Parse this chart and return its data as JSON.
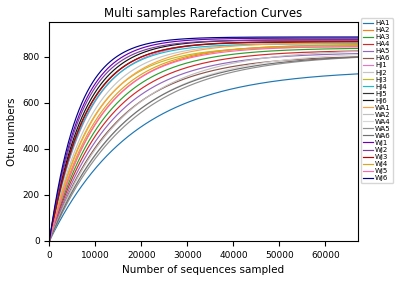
{
  "title": "Multi samples Rarefaction Curves",
  "xlabel": "Number of sequences sampled",
  "ylabel": "Otu numbers",
  "xlim": [
    0,
    67000
  ],
  "ylim": [
    0,
    950
  ],
  "xticks": [
    0,
    10000,
    20000,
    30000,
    40000,
    50000,
    60000
  ],
  "yticks": [
    0,
    200,
    400,
    600,
    800
  ],
  "samples": [
    {
      "label": "HA1",
      "color": "#1f77b4",
      "S_max": 745,
      "k": 5.5e-05
    },
    {
      "label": "HA2",
      "color": "#ff7f0e",
      "S_max": 855,
      "k": 9e-05
    },
    {
      "label": "HA3",
      "color": "#2ca02c",
      "S_max": 840,
      "k": 8.5e-05
    },
    {
      "label": "HA4",
      "color": "#d62728",
      "S_max": 830,
      "k": 8e-05
    },
    {
      "label": "HA5",
      "color": "#9467bd",
      "S_max": 820,
      "k": 7.5e-05
    },
    {
      "label": "HA6",
      "color": "#8c564b",
      "S_max": 808,
      "k": 7e-05
    },
    {
      "label": "HJ1",
      "color": "#e377c2",
      "S_max": 870,
      "k": 0.00012
    },
    {
      "label": "HJ2",
      "color": "#c5c5c5",
      "S_max": 860,
      "k": 0.00011
    },
    {
      "label": "HJ3",
      "color": "#bcbd22",
      "S_max": 845,
      "k": 0.000105
    },
    {
      "label": "HJ4",
      "color": "#17becf",
      "S_max": 858,
      "k": 0.000125
    },
    {
      "label": "HJ5",
      "color": "#333333",
      "S_max": 865,
      "k": 0.00013
    },
    {
      "label": "HJ6",
      "color": "#111111",
      "S_max": 875,
      "k": 0.000135
    },
    {
      "label": "WA1",
      "color": "#FFA040",
      "S_max": 863,
      "k": 0.0001
    },
    {
      "label": "WA2",
      "color": "#c0c0c0",
      "S_max": 835,
      "k": 6.5e-05
    },
    {
      "label": "WA4",
      "color": "#d8d8d8",
      "S_max": 825,
      "k": 6e-05
    },
    {
      "label": "WA5",
      "color": "#909090",
      "S_max": 815,
      "k": 5.8e-05
    },
    {
      "label": "WA6",
      "color": "#707070",
      "S_max": 812,
      "k": 6.2e-05
    },
    {
      "label": "WJ1",
      "color": "#6B00B6",
      "S_max": 882,
      "k": 0.00015
    },
    {
      "label": "WJ2",
      "color": "#7B3F9E",
      "S_max": 874,
      "k": 0.000145
    },
    {
      "label": "WJ3",
      "color": "#C00000",
      "S_max": 867,
      "k": 0.000128
    },
    {
      "label": "WJ4",
      "color": "#DAA520",
      "S_max": 852,
      "k": 9.5e-05
    },
    {
      "label": "WJ5",
      "color": "#FF69B4",
      "S_max": 847,
      "k": 9.2e-05
    },
    {
      "label": "WJ6",
      "color": "#00008B",
      "S_max": 887,
      "k": 0.00016
    }
  ],
  "figsize": [
    4.0,
    2.82
  ],
  "dpi": 100
}
